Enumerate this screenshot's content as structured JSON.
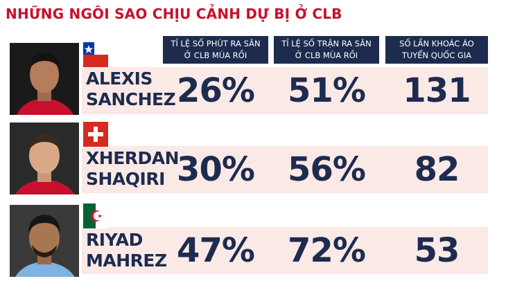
{
  "title": "NHỮNG NGÔI SAO CHỊU CẢNH DỰ BỊ Ở CLB",
  "columns": [
    {
      "line1": "TỈ LỆ SỐ PHÚT RA SÂN",
      "line2": "Ở CLB MÙA RỒI"
    },
    {
      "line1": "TỈ LỆ SỐ TRẬN RA SÂN",
      "line2": "Ở CLB MÙA RỒI"
    },
    {
      "line1": "SỐ LẦN KHOÁC ÁO",
      "line2": "TUYỂN QUỐC GIA"
    }
  ],
  "players": [
    {
      "first": "ALEXIS",
      "last": "SANCHEZ",
      "flag": "chile-flag-icon",
      "minutes_pct": "26%",
      "matches_pct": "51%",
      "caps": "131"
    },
    {
      "first": "XHERDAN",
      "last": "SHAQIRI",
      "flag": "switzerland-flag-icon",
      "minutes_pct": "30%",
      "matches_pct": "56%",
      "caps": "82"
    },
    {
      "first": "RIYAD",
      "last": "MAHREZ",
      "flag": "algeria-flag-icon",
      "minutes_pct": "47%",
      "matches_pct": "72%",
      "caps": "53"
    }
  ],
  "colors": {
    "title": "#c8102e",
    "navy": "#1d2b4f",
    "band": "#fbe9e6"
  }
}
